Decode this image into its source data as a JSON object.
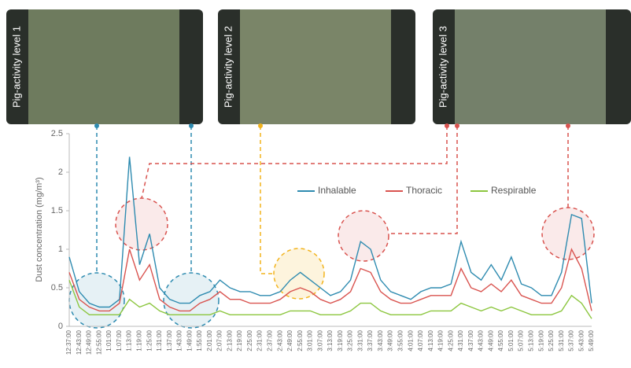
{
  "chart_data": {
    "type": "line",
    "annotations": [
      "Pig-activity level 1",
      "Pig-activity level 2",
      "Pig-activity level 3"
    ],
    "y_label": "Dust concentration (mg/m³)",
    "ylim": [
      0,
      2.5
    ],
    "yticks": [
      0,
      0.5,
      1,
      1.5,
      2,
      2.5
    ],
    "categories": [
      "12:37:00",
      "12:43:00",
      "12:49:00",
      "12:55:00",
      "1:01:00",
      "1:07:00",
      "1:13:00",
      "1:19:00",
      "1:25:00",
      "1:31:00",
      "1:37:00",
      "1:43:00",
      "1:49:00",
      "1:55:00",
      "2:01:00",
      "2:07:00",
      "2:13:00",
      "2:19:00",
      "2:25:00",
      "2:31:00",
      "2:37:00",
      "2:43:00",
      "2:49:00",
      "2:55:00",
      "3:01:00",
      "3:07:00",
      "3:13:00",
      "3:19:00",
      "3:25:00",
      "3:31:00",
      "3:37:00",
      "3:43:00",
      "3:49:00",
      "3:55:00",
      "4:01:00",
      "4:07:00",
      "4:13:00",
      "4:19:00",
      "4:25:00",
      "4:31:00",
      "4:37:00",
      "4:43:00",
      "4:49:00",
      "4:55:00",
      "5:01:00",
      "5:07:00",
      "5:13:00",
      "5:19:00",
      "5:25:00",
      "5:31:00",
      "5:37:00",
      "5:43:00",
      "5:49:00"
    ],
    "series": [
      {
        "name": "Inhalable",
        "color": "#2e8bb0",
        "values": [
          0.9,
          0.45,
          0.3,
          0.25,
          0.25,
          0.35,
          2.2,
          0.8,
          1.2,
          0.5,
          0.35,
          0.3,
          0.3,
          0.4,
          0.45,
          0.6,
          0.5,
          0.45,
          0.45,
          0.4,
          0.4,
          0.45,
          0.6,
          0.7,
          0.6,
          0.5,
          0.4,
          0.45,
          0.6,
          1.1,
          1.0,
          0.6,
          0.45,
          0.4,
          0.35,
          0.45,
          0.5,
          0.5,
          0.55,
          1.1,
          0.7,
          0.6,
          0.8,
          0.6,
          0.9,
          0.55,
          0.5,
          0.4,
          0.4,
          0.7,
          1.45,
          1.4,
          0.3
        ]
      },
      {
        "name": "Thoracic",
        "color": "#d9534f",
        "values": [
          0.7,
          0.35,
          0.25,
          0.2,
          0.2,
          0.3,
          1.0,
          0.6,
          0.8,
          0.35,
          0.25,
          0.2,
          0.2,
          0.3,
          0.35,
          0.45,
          0.35,
          0.35,
          0.3,
          0.3,
          0.3,
          0.35,
          0.45,
          0.5,
          0.45,
          0.35,
          0.3,
          0.35,
          0.45,
          0.75,
          0.7,
          0.45,
          0.35,
          0.3,
          0.3,
          0.35,
          0.4,
          0.4,
          0.4,
          0.75,
          0.5,
          0.45,
          0.55,
          0.45,
          0.6,
          0.4,
          0.35,
          0.3,
          0.3,
          0.5,
          1.0,
          0.75,
          0.2
        ]
      },
      {
        "name": "Respirable",
        "color": "#8cc63f",
        "values": [
          0.6,
          0.25,
          0.15,
          0.15,
          0.15,
          0.15,
          0.35,
          0.25,
          0.3,
          0.2,
          0.15,
          0.15,
          0.15,
          0.15,
          0.15,
          0.2,
          0.15,
          0.15,
          0.15,
          0.15,
          0.15,
          0.15,
          0.2,
          0.2,
          0.2,
          0.15,
          0.15,
          0.15,
          0.2,
          0.3,
          0.3,
          0.2,
          0.15,
          0.15,
          0.15,
          0.15,
          0.2,
          0.2,
          0.2,
          0.3,
          0.25,
          0.2,
          0.25,
          0.2,
          0.25,
          0.2,
          0.15,
          0.15,
          0.15,
          0.2,
          0.4,
          0.3,
          0.1
        ]
      }
    ]
  }
}
